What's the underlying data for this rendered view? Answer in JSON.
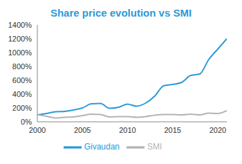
{
  "chart_data": {
    "type": "line",
    "title": "Share price evolution vs SMI",
    "x": [
      2000,
      2001,
      2002,
      2003,
      2004,
      2005,
      2006,
      2007,
      2008,
      2009,
      2010,
      2011,
      2012,
      2013,
      2014,
      2015,
      2016,
      2017,
      2018,
      2019,
      2020,
      2021
    ],
    "series": [
      {
        "name": "Givaudan",
        "color": "#2b9ad8",
        "values": [
          100,
          120,
          145,
          150,
          170,
          200,
          260,
          265,
          195,
          210,
          255,
          225,
          270,
          370,
          520,
          540,
          570,
          670,
          690,
          900,
          1050,
          1200
        ]
      },
      {
        "name": "SMI",
        "color": "#b3b3b3",
        "values": [
          100,
          80,
          55,
          65,
          70,
          90,
          110,
          105,
          70,
          75,
          75,
          65,
          75,
          95,
          105,
          105,
          100,
          110,
          100,
          125,
          120,
          160
        ]
      }
    ],
    "xlim": [
      2000,
      2021
    ],
    "xticks": [
      2000,
      2005,
      2010,
      2015,
      2020
    ],
    "ylim": [
      0,
      1400
    ],
    "yticks": [
      {
        "value": 0,
        "label": "0%"
      },
      {
        "value": 200,
        "label": "200%"
      },
      {
        "value": 400,
        "label": "400%"
      },
      {
        "value": 600,
        "label": "600%"
      },
      {
        "value": 800,
        "label": "800%"
      },
      {
        "value": 1000,
        "label": "1000%"
      },
      {
        "value": 1200,
        "label": "1200%"
      },
      {
        "value": 1400,
        "label": "1400%"
      }
    ],
    "grid": false,
    "legend": "bottom"
  }
}
